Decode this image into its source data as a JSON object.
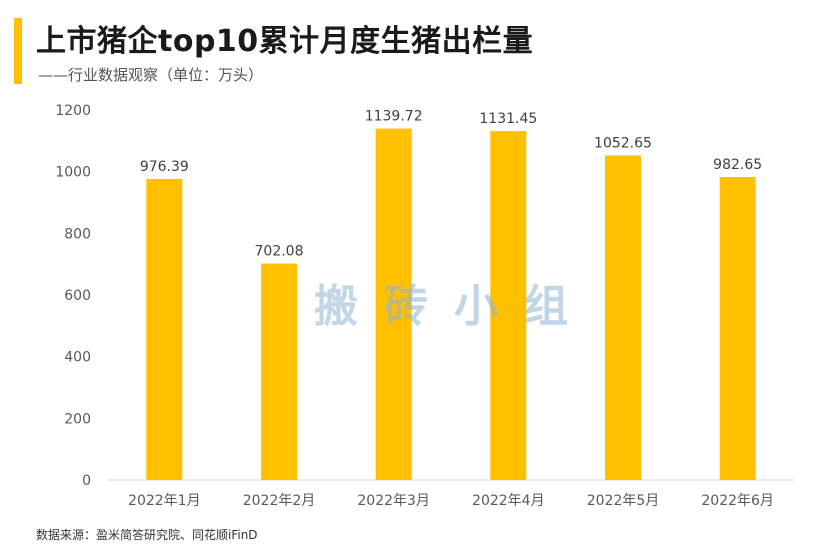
{
  "header": {
    "title": "上市猪企top10累计月度生猪出栏量",
    "subtitle": "——行业数据观察（单位：万头）"
  },
  "footer": {
    "source": "数据来源：盈米简答研究院、同花顺iFinD"
  },
  "watermark": "搬砖小组",
  "colors": {
    "accent": "#FFC000",
    "bar": "#FFC000",
    "axis": "#D9D9D9",
    "text": "#595959"
  },
  "chart_data": {
    "type": "bar",
    "categories": [
      "2022年1月",
      "2022年2月",
      "2022年3月",
      "2022年4月",
      "2022年5月",
      "2022年6月"
    ],
    "values": [
      976.39,
      702.08,
      1139.72,
      1131.45,
      1052.65,
      982.65
    ],
    "value_labels": [
      "976.39",
      "702.08",
      "1139.72",
      "1131.45",
      "1052.65",
      "982.65"
    ],
    "yticks": [
      "0",
      "200",
      "400",
      "600",
      "800",
      "1000",
      "1200"
    ],
    "ylim": [
      0,
      1200
    ],
    "grid": false,
    "legend": "none"
  }
}
